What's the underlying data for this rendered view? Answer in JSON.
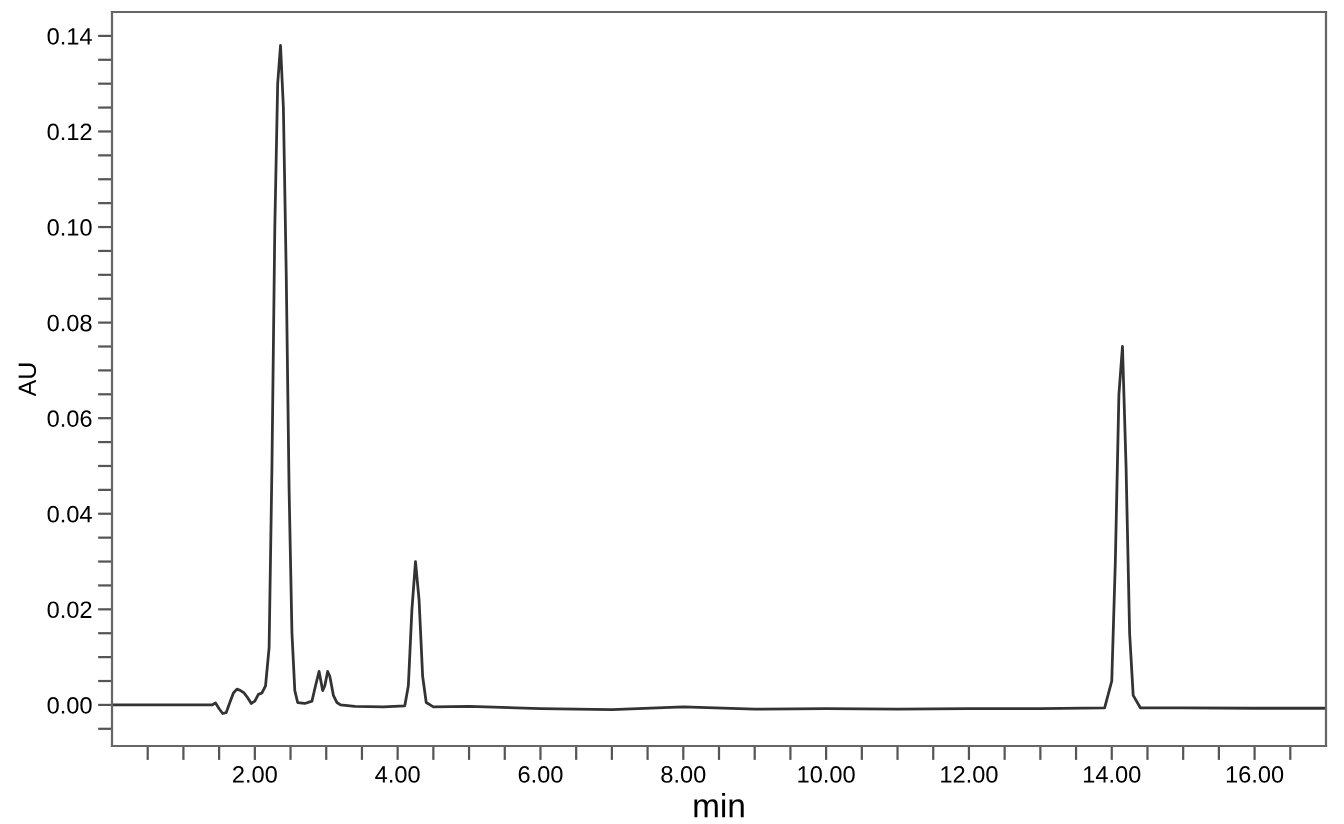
{
  "chart_data": {
    "type": "line",
    "xlabel": "min",
    "ylabel": "AU",
    "series": [
      {
        "color": "#333333",
        "x": [
          0,
          1.0,
          1.4,
          1.45,
          1.5,
          1.55,
          1.6,
          1.65,
          1.7,
          1.75,
          1.8,
          1.85,
          1.9,
          1.95,
          2.0,
          2.05,
          2.1,
          2.15,
          2.2,
          2.24,
          2.28,
          2.32,
          2.36,
          2.4,
          2.44,
          2.48,
          2.52,
          2.56,
          2.6,
          2.7,
          2.8,
          2.85,
          2.9,
          2.95,
          2.98,
          3.02,
          3.05,
          3.1,
          3.15,
          3.2,
          3.4,
          3.8,
          4.1,
          4.15,
          4.2,
          4.25,
          4.3,
          4.35,
          4.4,
          4.5,
          5.0,
          6,
          7,
          8,
          9,
          10,
          11,
          12,
          13,
          13.9,
          14.0,
          14.05,
          14.1,
          14.15,
          14.2,
          14.25,
          14.3,
          14.4,
          15,
          16,
          17
        ],
        "values": [
          0.0,
          0.0,
          0.0,
          0.0004,
          -0.0008,
          -0.0018,
          -0.0016,
          0.0005,
          0.0025,
          0.0033,
          0.003,
          0.0025,
          0.0015,
          0.0003,
          0.0008,
          0.0022,
          0.0025,
          0.004,
          0.012,
          0.05,
          0.1,
          0.13,
          0.138,
          0.125,
          0.09,
          0.045,
          0.015,
          0.003,
          0.0005,
          0.0003,
          0.0008,
          0.004,
          0.007,
          0.003,
          0.004,
          0.007,
          0.006,
          0.002,
          0.0005,
          0.0,
          -0.0003,
          -0.0004,
          -0.0002,
          0.004,
          0.02,
          0.03,
          0.022,
          0.006,
          0.0005,
          -0.0004,
          -0.0003,
          -0.0008,
          -0.001,
          -0.0004,
          -0.0009,
          -0.0008,
          -0.0009,
          -0.0008,
          -0.0008,
          -0.0006,
          0.005,
          0.03,
          0.065,
          0.075,
          0.05,
          0.015,
          0.002,
          -0.0006,
          -0.0006,
          -0.0007,
          -0.0007
        ]
      }
    ],
    "xlim": [
      0,
      17
    ],
    "ylim": [
      -0.0086,
      0.145
    ],
    "xticks": [
      {
        "value": 0.5,
        "label": null
      },
      {
        "value": 1.0,
        "label": null
      },
      {
        "value": 1.5,
        "label": null
      },
      {
        "value": 2,
        "label": "2.00"
      },
      {
        "value": 2.5,
        "label": null
      },
      {
        "value": 3,
        "label": null
      },
      {
        "value": 3.5,
        "label": null
      },
      {
        "value": 4,
        "label": "4.00"
      },
      {
        "value": 4.5,
        "label": null
      },
      {
        "value": 5,
        "label": null
      },
      {
        "value": 5.5,
        "label": null
      },
      {
        "value": 6,
        "label": "6.00"
      },
      {
        "value": 6.5,
        "label": null
      },
      {
        "value": 7,
        "label": null
      },
      {
        "value": 7.5,
        "label": null
      },
      {
        "value": 8,
        "label": "8.00"
      },
      {
        "value": 8.5,
        "label": null
      },
      {
        "value": 9,
        "label": null
      },
      {
        "value": 9.5,
        "label": null
      },
      {
        "value": 10,
        "label": "10.00"
      },
      {
        "value": 10.5,
        "label": null
      },
      {
        "value": 11,
        "label": null
      },
      {
        "value": 11.5,
        "label": null
      },
      {
        "value": 12,
        "label": "12.00"
      },
      {
        "value": 12.5,
        "label": null
      },
      {
        "value": 13,
        "label": null
      },
      {
        "value": 13.5,
        "label": null
      },
      {
        "value": 14,
        "label": "14.00"
      },
      {
        "value": 14.5,
        "label": null
      },
      {
        "value": 15,
        "label": null
      },
      {
        "value": 15.5,
        "label": null
      },
      {
        "value": 16,
        "label": "16.00"
      },
      {
        "value": 16.5,
        "label": null
      }
    ],
    "yticks": [
      {
        "value": -0.005,
        "label": null
      },
      {
        "value": 0,
        "label": "0.00"
      },
      {
        "value": 0.005,
        "label": null
      },
      {
        "value": 0.01,
        "label": null
      },
      {
        "value": 0.015,
        "label": null
      },
      {
        "value": 0.02,
        "label": "0.02"
      },
      {
        "value": 0.025,
        "label": null
      },
      {
        "value": 0.03,
        "label": null
      },
      {
        "value": 0.035,
        "label": null
      },
      {
        "value": 0.04,
        "label": "0.04"
      },
      {
        "value": 0.045,
        "label": null
      },
      {
        "value": 0.05,
        "label": null
      },
      {
        "value": 0.055,
        "label": null
      },
      {
        "value": 0.06,
        "label": "0.06"
      },
      {
        "value": 0.065,
        "label": null
      },
      {
        "value": 0.07,
        "label": null
      },
      {
        "value": 0.075,
        "label": null
      },
      {
        "value": 0.08,
        "label": "0.08"
      },
      {
        "value": 0.085,
        "label": null
      },
      {
        "value": 0.09,
        "label": null
      },
      {
        "value": 0.095,
        "label": null
      },
      {
        "value": 0.1,
        "label": "0.10"
      },
      {
        "value": 0.105,
        "label": null
      },
      {
        "value": 0.11,
        "label": null
      },
      {
        "value": 0.115,
        "label": null
      },
      {
        "value": 0.12,
        "label": "0.12"
      },
      {
        "value": 0.125,
        "label": null
      },
      {
        "value": 0.13,
        "label": null
      },
      {
        "value": 0.135,
        "label": null
      },
      {
        "value": 0.14,
        "label": "0.14"
      }
    ],
    "grid": false,
    "legend": false
  }
}
